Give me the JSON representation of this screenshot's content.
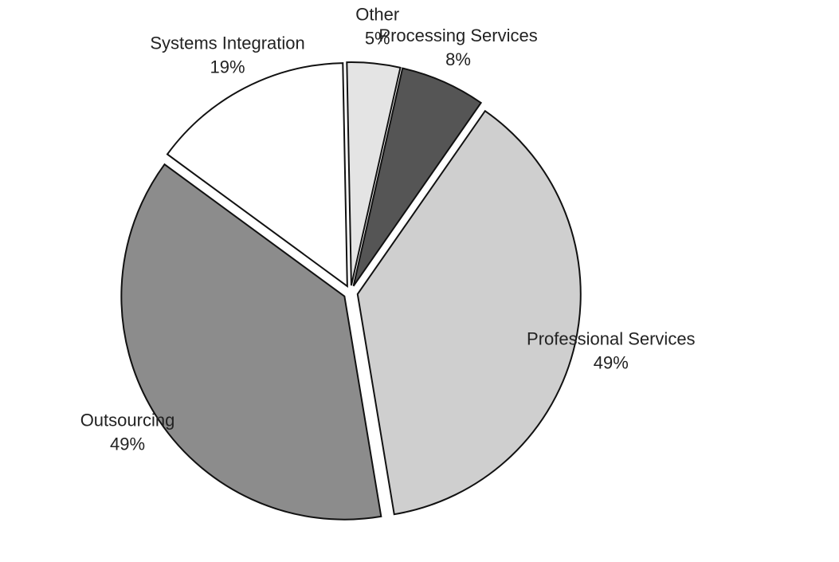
{
  "chart_data": {
    "type": "pie",
    "categories": [
      "Other",
      "Processing Services",
      "Professional Services",
      "Outsourcing",
      "Systems Integration"
    ],
    "values": [
      5,
      8,
      49,
      49,
      19
    ],
    "value_labels": [
      "5%",
      "8%",
      "49%",
      "49%",
      "19%"
    ],
    "colors": [
      "#e4e4e4",
      "#555555",
      "#cfcfcf",
      "#8c8c8c",
      "#ffffff"
    ]
  }
}
